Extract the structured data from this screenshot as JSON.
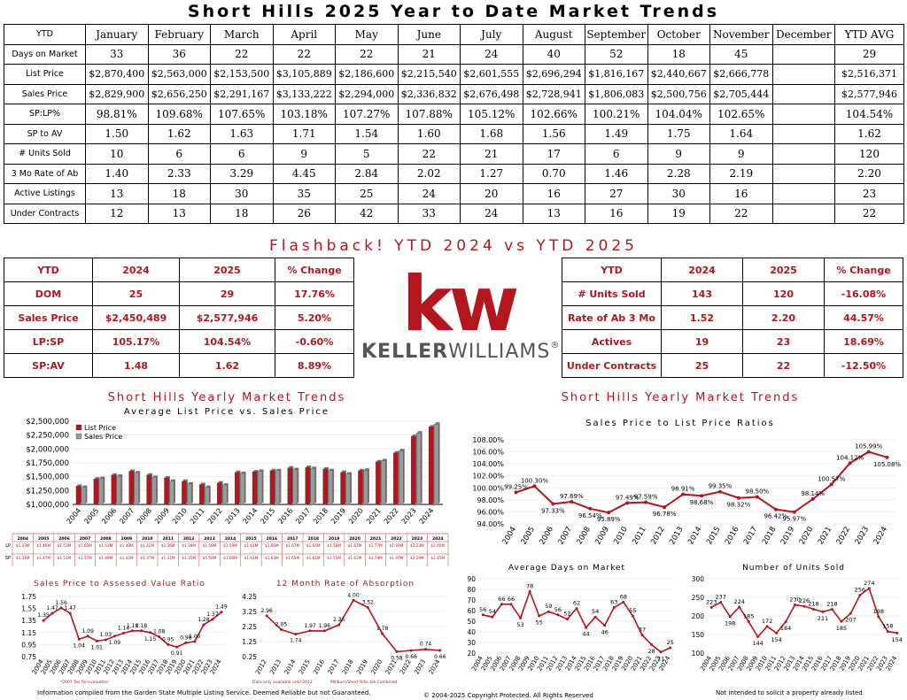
{
  "title": "Short Hills 2025 Year to Date Market Trends",
  "ytd_table": {
    "headers": [
      "YTD",
      "January",
      "February",
      "March",
      "April",
      "May",
      "June",
      "July",
      "August",
      "September",
      "October",
      "November",
      "December",
      "YTD AVG"
    ],
    "rows": [
      {
        "label": "Days on Market",
        "values": [
          "33",
          "36",
          "22",
          "22",
          "22",
          "21",
          "24",
          "40",
          "52",
          "18",
          "45",
          "",
          "29"
        ]
      },
      {
        "label": "List Price",
        "values": [
          "$2,870,400",
          "$2,563,000",
          "$2,153,500",
          "$3,105,889",
          "$2,186,600",
          "$2,215,540",
          "$2,601,555",
          "$2,696,294",
          "$1,816,167",
          "$2,440,667",
          "$2,666,778",
          "",
          "$2,516,371"
        ]
      },
      {
        "label": "Sales Price",
        "values": [
          "$2,829,900",
          "$2,656,250",
          "$2,291,167",
          "$3,133,222",
          "$2,294,000",
          "$2,336,832",
          "$2,676,498",
          "$2,728,941",
          "$1,806,083",
          "$2,500,756",
          "$2,705,444",
          "",
          "$2,577,946"
        ]
      },
      {
        "label": "SP:LP%",
        "values": [
          "98.81%",
          "109.68%",
          "107.65%",
          "103.18%",
          "107.27%",
          "107.88%",
          "105.12%",
          "102.66%",
          "100.21%",
          "104.04%",
          "102.65%",
          "",
          "104.54%"
        ]
      },
      {
        "label": "SP to AV",
        "values": [
          "1.50",
          "1.62",
          "1.63",
          "1.71",
          "1.54",
          "1.60",
          "1.68",
          "1.56",
          "1.49",
          "1.75",
          "1.64",
          "",
          "1.62"
        ]
      },
      {
        "label": "# Units Sold",
        "values": [
          "10",
          "6",
          "6",
          "9",
          "5",
          "22",
          "21",
          "17",
          "6",
          "9",
          "9",
          "",
          "120"
        ]
      },
      {
        "label": "3 Mo Rate of Ab",
        "values": [
          "1.40",
          "2.33",
          "3.29",
          "4.45",
          "2.84",
          "2.02",
          "1.27",
          "0.70",
          "1.46",
          "2.28",
          "2.19",
          "",
          "2.20"
        ]
      },
      {
        "label": "Active Listings",
        "values": [
          "13",
          "18",
          "30",
          "35",
          "25",
          "24",
          "20",
          "16",
          "27",
          "30",
          "16",
          "",
          "23"
        ]
      },
      {
        "label": "Under Contracts",
        "values": [
          "12",
          "13",
          "18",
          "26",
          "42",
          "33",
          "24",
          "13",
          "16",
          "19",
          "22",
          "",
          "22"
        ]
      }
    ]
  },
  "flashback_title": "Flashback!  YTD 2024 vs YTD 2025",
  "cmp_left": {
    "headers": [
      "YTD",
      "2024",
      "2025",
      "% Change"
    ],
    "rows": [
      [
        "DOM",
        "25",
        "29",
        "17.76%"
      ],
      [
        "Sales Price",
        "$2,450,489",
        "$2,577,946",
        "5.20%"
      ],
      [
        "LP:SP",
        "105.17%",
        "104.54%",
        "-0.60%"
      ],
      [
        "SP:AV",
        "1.48",
        "1.62",
        "8.89%"
      ]
    ]
  },
  "cmp_right": {
    "headers": [
      "YTD",
      "2024",
      "2025",
      "% Change"
    ],
    "rows": [
      [
        "# Units Sold",
        "143",
        "120",
        "-16.08%"
      ],
      [
        "Rate of Ab 3 Mo",
        "1.52",
        "2.20",
        "44.57%"
      ],
      [
        "Actives",
        "19",
        "23",
        "18.69%"
      ],
      [
        "Under Contracts",
        "25",
        "22",
        "-12.50%"
      ]
    ]
  },
  "logo": {
    "mark": "kw",
    "name_bold": "KELLER",
    "name_light": "WILLIAMS",
    "reg": "®"
  },
  "colors": {
    "accent": "#b4161e",
    "grey_bar": "#9a9a9a"
  },
  "left_section_title": "Short Hills Yearly Market Trends",
  "right_section_title": "Short Hills Yearly Market Trends",
  "chart_data": [
    {
      "id": "price",
      "type": "bar",
      "title": "Average List Price vs. Sales Price",
      "categories": [
        "2004",
        "2005",
        "2006",
        "2007",
        "2008",
        "2009",
        "2010",
        "2011",
        "2012",
        "2013",
        "2014",
        "2015",
        "2016",
        "2017",
        "2018",
        "2019",
        "2020",
        "2021",
        "2022",
        "2023",
        "2024"
      ],
      "series": [
        {
          "name": "List Price",
          "color": "#b4161e",
          "values": [
            1330000,
            1460000,
            1530000,
            1600000,
            1530000,
            1480000,
            1420000,
            1360000,
            1390000,
            1580000,
            1590000,
            1610000,
            1660000,
            1670000,
            1640000,
            1580000,
            1610000,
            1770000,
            1930000,
            2230000,
            2400000
          ]
        },
        {
          "name": "Sales Price",
          "color": "#9a9a9a",
          "values": [
            1310000,
            1470000,
            1510000,
            1570000,
            1490000,
            1420000,
            1370000,
            1310000,
            1350000,
            1560000,
            1600000,
            1610000,
            1630000,
            1650000,
            1610000,
            1550000,
            1620000,
            1790000,
            1970000,
            2290000,
            2450000
          ]
        }
      ],
      "yticks": [
        "$1,000,000",
        "$1,250,000",
        "$1,500,000",
        "$1,750,000",
        "$2,000,000",
        "$2,250,000",
        "$2,500,000"
      ],
      "ylim": [
        1000000,
        2500000
      ],
      "legend": "top-left",
      "table_rows": [
        {
          "label": "LP",
          "values": [
            "$1.33M",
            "$1.46M",
            "$1.53M",
            "$1.60M",
            "$1.53M",
            "$1.48M",
            "$1.42M",
            "$1.36M",
            "$1.39M",
            "$1.58M",
            "$1.59M",
            "$1.61M",
            "$1.66M",
            "$1.67M",
            "$1.64M",
            "$1.58M",
            "$1.61M",
            "$1.77M",
            "$1.93M",
            "$2.23M",
            "$2.40M"
          ]
        },
        {
          "label": "SP",
          "values": [
            "$1.31M",
            "$1.47M",
            "$1.51M",
            "$1.57M",
            "$1.49M",
            "$1.42M",
            "$1.37M",
            "$1.31M",
            "$1.35M",
            "$1.56M",
            "$1.60M",
            "$1.61M",
            "$1.63M",
            "$1.65M",
            "$1.61M",
            "$1.55M",
            "$1.62M",
            "$1.79M",
            "$1.97M",
            "$2.29M",
            "$2.45M"
          ]
        }
      ]
    },
    {
      "id": "splp",
      "type": "line",
      "title": "Sales Price to List Price Ratios",
      "categories": [
        "2004",
        "2005",
        "2006",
        "2007",
        "2008",
        "2009",
        "2010",
        "2011",
        "2012",
        "2013",
        "2014",
        "2015",
        "2016",
        "2017",
        "2018",
        "2019",
        "2020",
        "2021",
        "2022",
        "2023",
        "2024"
      ],
      "values": [
        99.25,
        100.3,
        97.33,
        97.69,
        96.54,
        95.89,
        97.49,
        97.59,
        96.78,
        98.91,
        98.68,
        99.35,
        98.32,
        98.5,
        96.42,
        95.97,
        98.14,
        100.57,
        104.12,
        105.99,
        105.08
      ],
      "labels": [
        "99.25%",
        "100.30%",
        "97.33%",
        "97.69%",
        "96.54%",
        "95.89%",
        "97.49%",
        "97.59%",
        "96.78%",
        "98.91%",
        "98.68%",
        "99.35%",
        "98.32%",
        "98.50%",
        "96.42%",
        "95.97%",
        "98.14%",
        "100.57%",
        "104.12%",
        "105.99%",
        "105.08%"
      ],
      "yticks": [
        "94.00%",
        "96.00%",
        "98.00%",
        "100.00%",
        "102.00%",
        "104.00%",
        "106.00%",
        "108.00%"
      ],
      "ylim": [
        94,
        108
      ]
    },
    {
      "id": "spav",
      "type": "line",
      "title": "Sales Price to Assessed Value Ratio",
      "categories": [
        "2004",
        "2005",
        "2006",
        "2007",
        "2008",
        "2009",
        "2010",
        "2011",
        "2012",
        "2013",
        "2014",
        "2015",
        "2016",
        "2017",
        "2018",
        "2019",
        "2020",
        "2021",
        "2022",
        "2023",
        "2024"
      ],
      "values": [
        1.35,
        1.47,
        1.56,
        1.47,
        1.04,
        1.09,
        1.01,
        1.03,
        1.09,
        1.14,
        1.18,
        1.18,
        1.15,
        1.08,
        0.95,
        0.91,
        0.98,
        1.0,
        1.28,
        1.37,
        1.49
      ],
      "labels": [
        "1.35",
        "1.47",
        "1.56",
        "1.47",
        "1.04",
        "1.09",
        "1.01",
        "1.03",
        "1.09",
        "1.14",
        "1.18",
        "1.18",
        "1.15",
        "1.08",
        "0.95",
        "0.91",
        "0.98",
        "1.00",
        "1.28",
        "1.37",
        "1.49"
      ],
      "yticks": [
        "0.75",
        "0.95",
        "1.15",
        "1.35",
        "1.55",
        "1.75"
      ],
      "ylim": [
        0.75,
        1.75
      ],
      "note": "*2007 Tax Re-evaluation"
    },
    {
      "id": "absorption",
      "type": "line",
      "title": "12 Month Rate of Absorption",
      "categories": [
        "2012",
        "2013",
        "2014",
        "2015",
        "2016",
        "2017",
        "2018",
        "2019",
        "2020",
        "2021",
        "2022",
        "2023",
        "2024"
      ],
      "values": [
        2.96,
        2.05,
        1.74,
        1.97,
        1.96,
        2.36,
        4.0,
        3.52,
        1.78,
        0.58,
        0.66,
        0.74,
        0.66
      ],
      "labels": [
        "2.96",
        "2.05",
        "1.74",
        "1.97",
        "1.96",
        "2.36",
        "4.00",
        "3.52",
        "1.78",
        "0.58",
        "0.66",
        "0.74",
        "0.66"
      ],
      "yticks": [
        "0.25",
        "1.25",
        "2.25",
        "3.25",
        "4.25"
      ],
      "ylim": [
        0.25,
        4.25
      ],
      "note_left": "Data only available until 2012",
      "note_right": "Millburn/Short Hills are Combined"
    },
    {
      "id": "dom",
      "type": "line",
      "title": "Average Days on Market",
      "categories": [
        "2004",
        "2005",
        "2006",
        "2007",
        "2008",
        "2009",
        "2010",
        "2011",
        "2012",
        "2013",
        "2014",
        "2015",
        "2016",
        "2017",
        "2018",
        "2019",
        "2020",
        "2021",
        "2022",
        "2023",
        "2024"
      ],
      "values": [
        56,
        54,
        66,
        66,
        53,
        78,
        55,
        59,
        56,
        52,
        62,
        44,
        54,
        46,
        63,
        68,
        55,
        37,
        28,
        21,
        25
      ],
      "labels": [
        "56",
        "54",
        "66",
        "66",
        "53",
        "78",
        "55",
        "59",
        "56",
        "52",
        "62",
        "44",
        "54",
        "46",
        "63",
        "68",
        "55",
        "37",
        "28",
        "21",
        "25"
      ],
      "yticks": [
        "20",
        "30",
        "40",
        "50",
        "60",
        "70",
        "80",
        "90"
      ],
      "ylim": [
        20,
        90
      ]
    },
    {
      "id": "units",
      "type": "line",
      "title": "Number of Units Sold",
      "categories": [
        "2004",
        "2005",
        "2006",
        "2007",
        "2008",
        "2009",
        "2010",
        "2011",
        "2012",
        "2013",
        "2014",
        "2015",
        "2016",
        "2017",
        "2018",
        "2019",
        "2020",
        "2021",
        "2022",
        "2023",
        "2024"
      ],
      "values": [
        223,
        237,
        198,
        224,
        185,
        144,
        172,
        154,
        184,
        230,
        226,
        218,
        211,
        218,
        185,
        207,
        256,
        274,
        198,
        158,
        154
      ],
      "labels": [
        "223",
        "237",
        "198",
        "224",
        "185",
        "144",
        "172",
        "154",
        "184",
        "230",
        "226",
        "218",
        "211",
        "218",
        "185",
        "207",
        "256",
        "274",
        "198",
        "158",
        "154"
      ],
      "yticks": [
        "100",
        "150",
        "200",
        "250",
        "300"
      ],
      "ylim": [
        100,
        300
      ]
    }
  ],
  "footer": {
    "left": "Information compiled from the Garden State Multiple Listing Service.  Deemed Reliable but not Guaranteed.",
    "center": "© 2004-2025 Copyright Protected.  All Rights Reserved",
    "right": "Not intended to solicit a property already listed."
  }
}
